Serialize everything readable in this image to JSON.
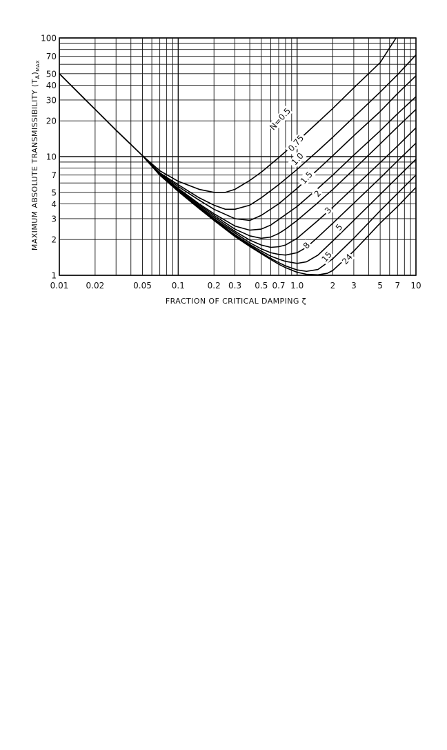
{
  "chart_data": {
    "type": "line",
    "title": "",
    "xlabel": "FRACTION OF CRITICAL DAMPING ζ",
    "ylabel_main": "MAXIMUM ABSOLUTE TRANSMISSIBILITY (T",
    "ylabel_sub": "A",
    "ylabel_tail": ")",
    "ylabel_subscript": "MAX",
    "x_scale": "log",
    "y_scale": "log",
    "xlim": [
      0.01,
      10
    ],
    "ylim": [
      1,
      100
    ],
    "grid": true,
    "legend": "none",
    "xtick_labels": [
      {
        "v": 0.01,
        "label": "0.01"
      },
      {
        "v": 0.02,
        "label": "0.02"
      },
      {
        "v": 0.05,
        "label": "0.05"
      },
      {
        "v": 0.1,
        "label": "0.1"
      },
      {
        "v": 0.2,
        "label": "0.2"
      },
      {
        "v": 0.3,
        "label": "0.3"
      },
      {
        "v": 0.5,
        "label": "0.5"
      },
      {
        "v": 0.7,
        "label": "0.7"
      },
      {
        "v": 1.0,
        "label": "1.0"
      },
      {
        "v": 2,
        "label": "2"
      },
      {
        "v": 3,
        "label": "3"
      },
      {
        "v": 5,
        "label": "5"
      },
      {
        "v": 7,
        "label": "7"
      },
      {
        "v": 10,
        "label": "10"
      }
    ],
    "ytick_labels": [
      {
        "v": 1,
        "label": "1"
      },
      {
        "v": 2,
        "label": "2"
      },
      {
        "v": 3,
        "label": "3"
      },
      {
        "v": 4,
        "label": "4"
      },
      {
        "v": 5,
        "label": "5"
      },
      {
        "v": 7,
        "label": "7"
      },
      {
        "v": 10,
        "label": "10"
      },
      {
        "v": 20,
        "label": "20"
      },
      {
        "v": 30,
        "label": "30"
      },
      {
        "v": 40,
        "label": "40"
      },
      {
        "v": 50,
        "label": "50"
      },
      {
        "v": 70,
        "label": "70"
      },
      {
        "v": 100,
        "label": "100"
      }
    ],
    "x_gridlines": [
      0.01,
      0.02,
      0.03,
      0.04,
      0.05,
      0.06,
      0.07,
      0.08,
      0.09,
      0.1,
      0.2,
      0.3,
      0.4,
      0.5,
      0.6,
      0.7,
      0.8,
      0.9,
      1,
      2,
      3,
      4,
      5,
      6,
      7,
      8,
      9,
      10
    ],
    "y_gridlines": [
      1,
      2,
      3,
      4,
      5,
      6,
      7,
      8,
      9,
      10,
      20,
      30,
      40,
      50,
      60,
      70,
      80,
      90,
      100
    ],
    "common_branch": {
      "x": [
        0.01,
        0.02,
        0.03,
        0.05
      ],
      "y": [
        50,
        25,
        16.7,
        10.2
      ]
    },
    "series": [
      {
        "name": "N=0.5",
        "label_at": [
          0.75,
          20
        ],
        "x": [
          0.05,
          0.07,
          0.1,
          0.15,
          0.2,
          0.25,
          0.3,
          0.4,
          0.5,
          0.7,
          1.0,
          1.5,
          2,
          3,
          5,
          6.8
        ],
        "y": [
          10.2,
          7.6,
          6.2,
          5.3,
          5.0,
          5.0,
          5.3,
          6.3,
          7.4,
          9.8,
          13.4,
          19.5,
          25.5,
          38,
          62,
          100
        ]
      },
      {
        "name": "0.75",
        "label_at": [
          1.02,
          12.5
        ],
        "x": [
          0.05,
          0.07,
          0.1,
          0.15,
          0.2,
          0.25,
          0.3,
          0.4,
          0.5,
          0.7,
          1.0,
          1.5,
          2,
          3,
          5,
          7,
          10
        ],
        "y": [
          10.2,
          7.3,
          5.8,
          4.5,
          3.9,
          3.6,
          3.6,
          3.9,
          4.5,
          5.8,
          7.8,
          11.2,
          14.6,
          21.5,
          35,
          49,
          72
        ]
      },
      {
        "name": "1.0",
        "label_at": [
          1.05,
          9.2
        ],
        "x": [
          0.05,
          0.07,
          0.1,
          0.15,
          0.2,
          0.3,
          0.4,
          0.5,
          0.7,
          1.0,
          1.5,
          2,
          3,
          5,
          7,
          10
        ],
        "y": [
          10.2,
          7.2,
          5.6,
          4.3,
          3.6,
          3.0,
          2.9,
          3.2,
          4.0,
          5.4,
          7.8,
          10.2,
          15,
          24,
          34,
          48
        ]
      },
      {
        "name": "1.5",
        "label_at": [
          1.25,
          6.4
        ],
        "x": [
          0.05,
          0.07,
          0.1,
          0.15,
          0.2,
          0.3,
          0.4,
          0.5,
          0.6,
          0.7,
          1.0,
          1.5,
          2,
          3,
          5,
          7,
          10
        ],
        "y": [
          10.2,
          7.1,
          5.4,
          4.0,
          3.3,
          2.6,
          2.4,
          2.45,
          2.65,
          2.95,
          3.8,
          5.4,
          7.0,
          10.3,
          16.5,
          23,
          32
        ]
      },
      {
        "name": "2",
        "label_at": [
          1.55,
          4.7
        ],
        "x": [
          0.05,
          0.07,
          0.1,
          0.15,
          0.2,
          0.3,
          0.4,
          0.5,
          0.6,
          0.7,
          0.8,
          1.0,
          1.5,
          2,
          3,
          5,
          7,
          10
        ],
        "y": [
          10.2,
          7.0,
          5.3,
          3.9,
          3.2,
          2.45,
          2.15,
          2.05,
          2.1,
          2.25,
          2.45,
          2.9,
          4.1,
          5.3,
          7.8,
          12.8,
          17.8,
          25
        ]
      },
      {
        "name": "3",
        "label_at": [
          1.9,
          3.4
        ],
        "x": [
          0.05,
          0.07,
          0.1,
          0.15,
          0.2,
          0.3,
          0.4,
          0.5,
          0.6,
          0.7,
          0.8,
          1.0,
          1.5,
          2,
          3,
          5,
          7,
          10
        ],
        "y": [
          10.2,
          7.0,
          5.2,
          3.8,
          3.1,
          2.35,
          1.98,
          1.8,
          1.72,
          1.74,
          1.8,
          2.05,
          2.9,
          3.75,
          5.5,
          8.9,
          12.3,
          17.5
        ]
      },
      {
        "name": "5",
        "label_at": [
          2.35,
          2.45
        ],
        "x": [
          0.05,
          0.07,
          0.1,
          0.15,
          0.2,
          0.3,
          0.4,
          0.5,
          0.6,
          0.7,
          0.8,
          1.0,
          1.2,
          1.5,
          2,
          3,
          5,
          7,
          10
        ],
        "y": [
          10.2,
          7.0,
          5.15,
          3.75,
          3.0,
          2.28,
          1.88,
          1.67,
          1.55,
          1.5,
          1.48,
          1.55,
          1.72,
          2.1,
          2.75,
          4.05,
          6.6,
          9.2,
          13
        ]
      },
      {
        "name": "8",
        "label_at": [
          1.25,
          1.72
        ],
        "x": [
          0.05,
          0.07,
          0.1,
          0.15,
          0.2,
          0.3,
          0.4,
          0.5,
          0.6,
          0.7,
          0.8,
          1.0,
          1.2,
          1.5,
          2,
          3,
          5,
          7,
          10
        ],
        "y": [
          10.2,
          7.0,
          5.1,
          3.7,
          2.95,
          2.2,
          1.82,
          1.6,
          1.45,
          1.37,
          1.31,
          1.26,
          1.3,
          1.48,
          1.95,
          2.9,
          4.8,
          6.7,
          9.5
        ]
      },
      {
        "name": "15",
        "label_at": [
          1.85,
          1.38
        ],
        "x": [
          0.05,
          0.07,
          0.1,
          0.15,
          0.2,
          0.3,
          0.4,
          0.5,
          0.6,
          0.7,
          0.8,
          1.0,
          1.2,
          1.5,
          2,
          3,
          5,
          7,
          10
        ],
        "y": [
          10.2,
          7.0,
          5.1,
          3.65,
          2.92,
          2.15,
          1.78,
          1.55,
          1.39,
          1.28,
          1.2,
          1.11,
          1.08,
          1.12,
          1.38,
          2.05,
          3.5,
          4.9,
          7.0
        ]
      },
      {
        "name": "24",
        "label_at": [
          2.75,
          1.32
        ],
        "x": [
          0.05,
          0.07,
          0.1,
          0.15,
          0.2,
          0.3,
          0.4,
          0.5,
          0.6,
          0.7,
          0.8,
          1.0,
          1.2,
          1.5,
          1.8,
          2,
          3,
          5,
          7,
          10
        ],
        "y": [
          10.2,
          7.0,
          5.1,
          3.65,
          2.9,
          2.12,
          1.75,
          1.52,
          1.36,
          1.24,
          1.16,
          1.06,
          1.02,
          1.01,
          1.04,
          1.1,
          1.6,
          2.75,
          3.8,
          5.5
        ]
      }
    ]
  }
}
